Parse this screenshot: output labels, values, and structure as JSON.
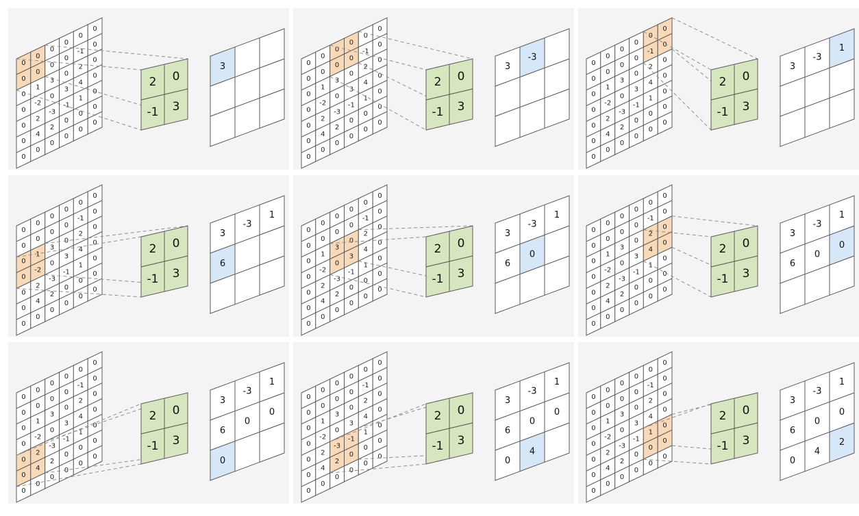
{
  "input_matrix": [
    [
      "0",
      "0",
      "0",
      "0",
      "0",
      "0"
    ],
    [
      "0",
      "0",
      "0",
      "0",
      "-1",
      "0"
    ],
    [
      "0",
      "1",
      "3",
      "0",
      "2",
      "0"
    ],
    [
      "0",
      "-2",
      "0",
      "3",
      "4",
      "0"
    ],
    [
      "0",
      "2",
      "-3",
      "-1",
      "1",
      "0"
    ],
    [
      "0",
      "4",
      "2",
      "0",
      "0",
      "0"
    ],
    [
      "0",
      "0",
      "0",
      "0",
      "0",
      "0"
    ]
  ],
  "kernel": [
    [
      "2",
      "0"
    ],
    [
      "-1",
      "3"
    ]
  ],
  "output": [
    [
      "3",
      "-3",
      "1"
    ],
    [
      "6",
      "0",
      "0"
    ],
    [
      "0",
      "4",
      "2"
    ]
  ],
  "steps": [
    {
      "row": 0,
      "col": 0
    },
    {
      "row": 0,
      "col": 1
    },
    {
      "row": 0,
      "col": 2
    },
    {
      "row": 1,
      "col": 0
    },
    {
      "row": 1,
      "col": 1
    },
    {
      "row": 1,
      "col": 2
    },
    {
      "row": 2,
      "col": 0
    },
    {
      "row": 2,
      "col": 1
    },
    {
      "row": 2,
      "col": 2
    }
  ],
  "colors": {
    "window": "#f8d9b8",
    "kernel": "#d6e6bf",
    "output_current": "#d6e8f7",
    "cell_default": "#ffffff",
    "panel_bg": "#f4f4f4"
  }
}
